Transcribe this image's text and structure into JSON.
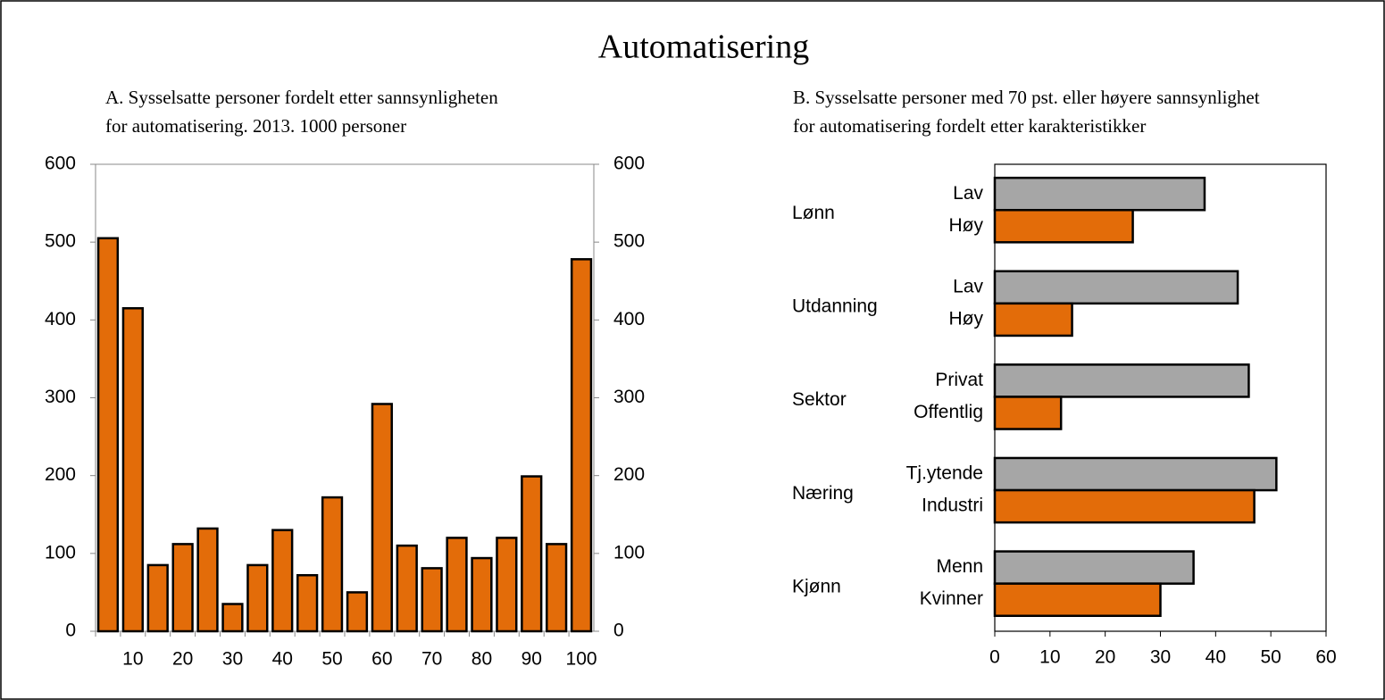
{
  "title": "Automatisering",
  "chart_data": [
    {
      "type": "bar",
      "title": [
        "A. Sysselsatte personer fordelt etter sannsynligheten",
        "for automatisering. 2013. 1000 personer"
      ],
      "categories": [
        null,
        "10",
        null,
        "20",
        null,
        "30",
        null,
        "40",
        null,
        "50",
        null,
        "60",
        null,
        "70",
        null,
        "80",
        null,
        "90",
        null,
        "100"
      ],
      "values": [
        505,
        415,
        85,
        112,
        132,
        35,
        85,
        130,
        72,
        172,
        50,
        292,
        110,
        81,
        120,
        94,
        120,
        199,
        112,
        478
      ],
      "color": "#e36c09",
      "ylim": [
        0,
        600
      ],
      "yticks": [
        0,
        100,
        200,
        300,
        400,
        500,
        600
      ],
      "y2lim": [
        0,
        600
      ],
      "y2ticks": [
        0,
        100,
        200,
        300,
        400,
        500,
        600
      ]
    },
    {
      "type": "hbar",
      "title": [
        "B. Sysselsatte personer med 70 pst. eller høyere sannsynlighet",
        "for automatisering fordelt etter karakteristikker"
      ],
      "groups": [
        {
          "name": "Lønn",
          "labels": [
            "Lav",
            "Høy"
          ]
        },
        {
          "name": "Utdanning",
          "labels": [
            "Lav",
            "Høy"
          ]
        },
        {
          "name": "Sektor",
          "labels": [
            "Privat",
            "Offentlig"
          ]
        },
        {
          "name": "Næring",
          "labels": [
            "Tj.ytende",
            "Industri"
          ]
        },
        {
          "name": "Kjønn",
          "labels": [
            "Menn",
            "Kvinner"
          ]
        }
      ],
      "series": [
        {
          "color": "#a6a6a6",
          "values": [
            38,
            44,
            46,
            51,
            36
          ]
        },
        {
          "color": "#e36c09",
          "values": [
            25,
            14,
            12,
            47,
            30
          ]
        }
      ],
      "xlim": [
        0,
        60
      ],
      "xticks": [
        0,
        10,
        20,
        30,
        40,
        50,
        60
      ]
    }
  ]
}
